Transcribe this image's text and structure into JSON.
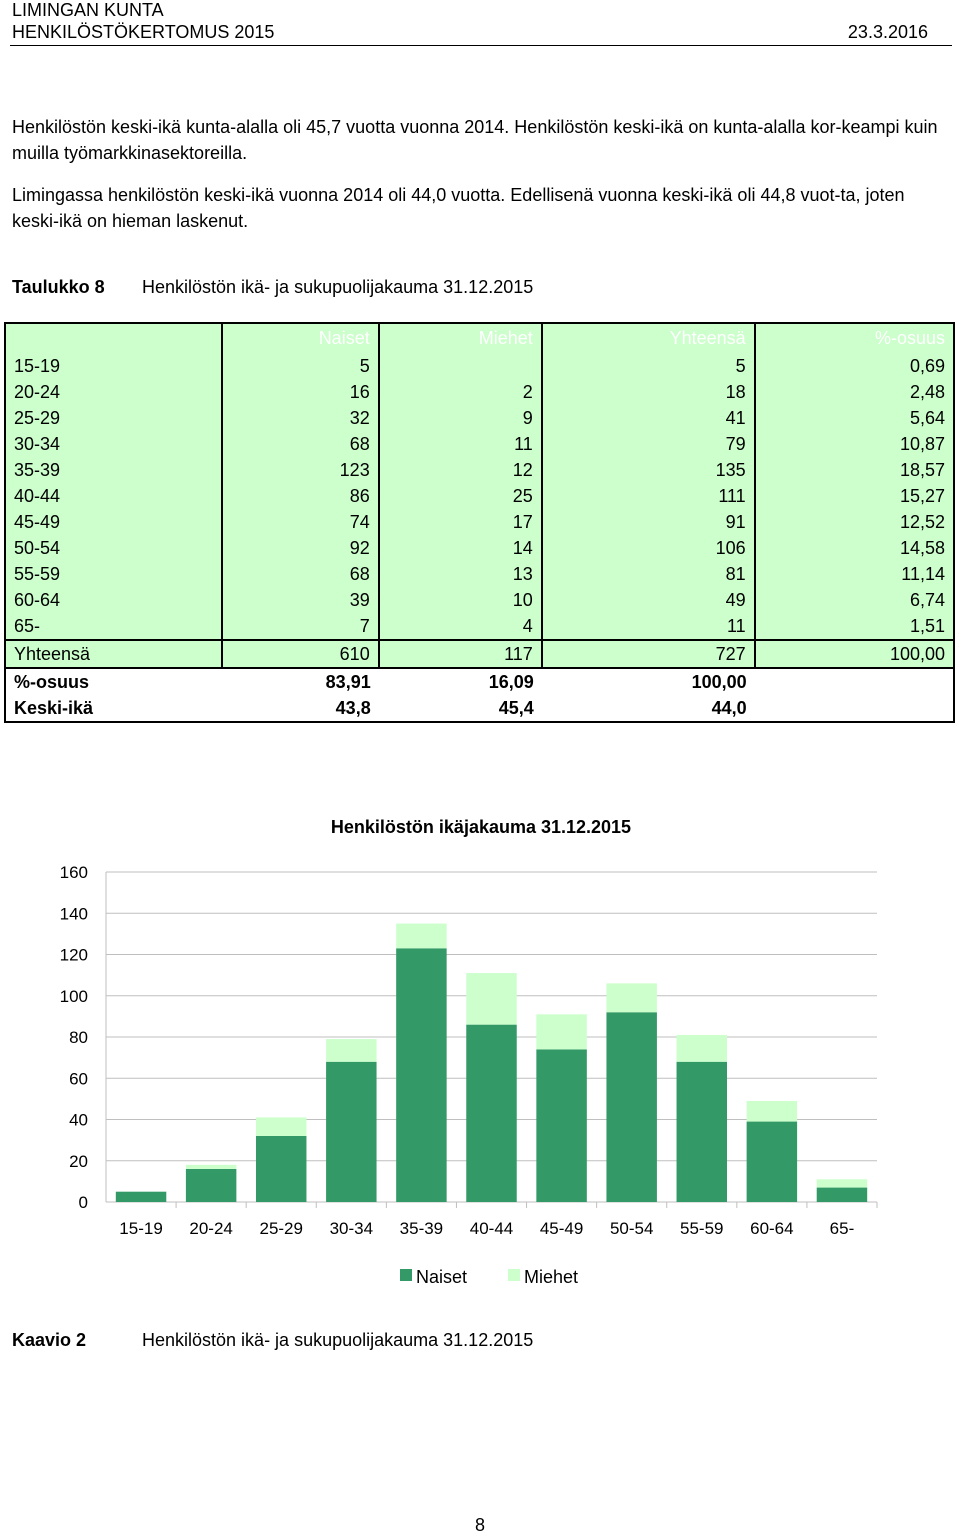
{
  "header": {
    "org": "LIMINGAN KUNTA",
    "doc_title": "HENKILÖSTÖKERTOMUS 2015",
    "date": "23.3.2016"
  },
  "paragraphs": [
    "Henkilöstön keski-ikä kunta-alalla oli 45,7 vuotta vuonna 2014. Henkilöstön keski-ikä on kunta-alalla kor-keampi kuin muilla työmarkkinasektoreilla.",
    "Limingassa henkilöstön keski-ikä vuonna 2014 oli 44,0 vuotta. Edellisenä vuonna keski-ikä oli 44,8 vuot-ta, joten keski-ikä on hieman laskenut."
  ],
  "table_caption": {
    "label": "Taulukko 8",
    "text": "Henkilöstön ikä- ja sukupuolijakauma 31.12.2015"
  },
  "table": {
    "headers": [
      "",
      "Naiset",
      "Miehet",
      "Yhteensä",
      "%-osuus"
    ],
    "rows": [
      [
        "15-19",
        "5",
        "",
        "5",
        "0,69"
      ],
      [
        "20-24",
        "16",
        "2",
        "18",
        "2,48"
      ],
      [
        "25-29",
        "32",
        "9",
        "41",
        "5,64"
      ],
      [
        "30-34",
        "68",
        "11",
        "79",
        "10,87"
      ],
      [
        "35-39",
        "123",
        "12",
        "135",
        "18,57"
      ],
      [
        "40-44",
        "86",
        "25",
        "111",
        "15,27"
      ],
      [
        "45-49",
        "74",
        "17",
        "91",
        "12,52"
      ],
      [
        "50-54",
        "92",
        "14",
        "106",
        "14,58"
      ],
      [
        "55-59",
        "68",
        "13",
        "81",
        "11,14"
      ],
      [
        "60-64",
        "39",
        "10",
        "49",
        "6,74"
      ],
      [
        "65-",
        "7",
        "4",
        "11",
        "1,51"
      ]
    ],
    "total_row": [
      "Yhteensä",
      "610",
      "117",
      "727",
      "100,00"
    ],
    "share_row": [
      "%-osuus",
      "83,91",
      "16,09",
      "100,00",
      ""
    ],
    "avg_age_row": [
      "Keski-ikä",
      "43,8",
      "45,4",
      "44,0",
      ""
    ]
  },
  "chart_data": {
    "type": "bar",
    "stacked": true,
    "title": "Henkilöstön ikäjakauma 31.12.2015",
    "categories": [
      "15-19",
      "20-24",
      "25-29",
      "30-34",
      "35-39",
      "40-44",
      "45-49",
      "50-54",
      "55-59",
      "60-64",
      "65-"
    ],
    "series": [
      {
        "name": "Naiset",
        "color": "#339966",
        "values": [
          5,
          16,
          32,
          68,
          123,
          86,
          74,
          92,
          68,
          39,
          7
        ]
      },
      {
        "name": "Miehet",
        "color": "#ccffcc",
        "values": [
          0,
          2,
          9,
          11,
          12,
          25,
          17,
          14,
          13,
          10,
          4
        ]
      }
    ],
    "ylim": [
      0,
      160
    ],
    "yticks": [
      0,
      20,
      40,
      60,
      80,
      100,
      120,
      140,
      160
    ],
    "grid": true,
    "legend": "bottom"
  },
  "chart_caption": {
    "label": "Kaavio 2",
    "text": "Henkilöstön ikä- ja sukupuolijakauma 31.12.2015"
  },
  "page_number": "8",
  "colors": {
    "table_fill": "#ccffcc",
    "naiset": "#339966",
    "miehet": "#ccffcc"
  }
}
